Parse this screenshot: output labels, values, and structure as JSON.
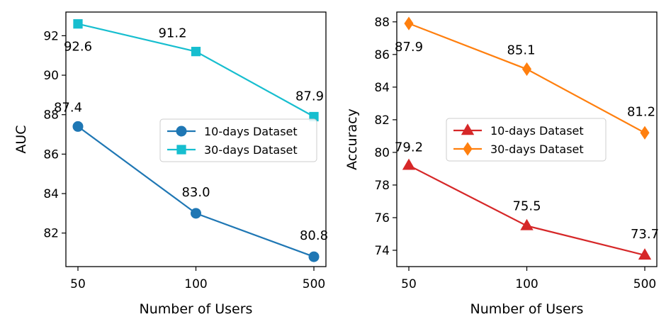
{
  "chart_data": [
    {
      "type": "line",
      "xlabel": "Number of Users",
      "ylabel": "AUC",
      "categories": [
        "50",
        "100",
        "500"
      ],
      "ylim": [
        80.3,
        93.2
      ],
      "yticks": [
        82,
        84,
        86,
        88,
        90,
        92
      ],
      "grid": false,
      "legend": "center-right",
      "series": [
        {
          "name": "10-days Dataset",
          "values": [
            87.4,
            83.0,
            80.8
          ],
          "labels": [
            "87.4",
            "83.0",
            "80.8"
          ],
          "color": "#1f77b4",
          "marker": "circle"
        },
        {
          "name": "30-days Dataset",
          "values": [
            92.6,
            91.2,
            87.9
          ],
          "labels": [
            "92.6",
            "91.2",
            "87.9"
          ],
          "color": "#17becf",
          "marker": "square"
        }
      ]
    },
    {
      "type": "line",
      "xlabel": "Number of Users",
      "ylabel": "Accuracy",
      "categories": [
        "50",
        "100",
        "500"
      ],
      "ylim": [
        73.0,
        88.6
      ],
      "yticks": [
        74,
        76,
        78,
        80,
        82,
        84,
        86,
        88
      ],
      "grid": false,
      "legend": "center",
      "series": [
        {
          "name": "10-days Dataset",
          "values": [
            79.2,
            75.5,
            73.7
          ],
          "labels": [
            "79.2",
            "75.5",
            "73.7"
          ],
          "color": "#d62728",
          "marker": "triangle"
        },
        {
          "name": "30-days Dataset",
          "values": [
            87.9,
            85.1,
            81.2
          ],
          "labels": [
            "87.9",
            "85.1",
            "81.2"
          ],
          "color": "#ff7f0e",
          "marker": "diamond"
        }
      ]
    }
  ]
}
